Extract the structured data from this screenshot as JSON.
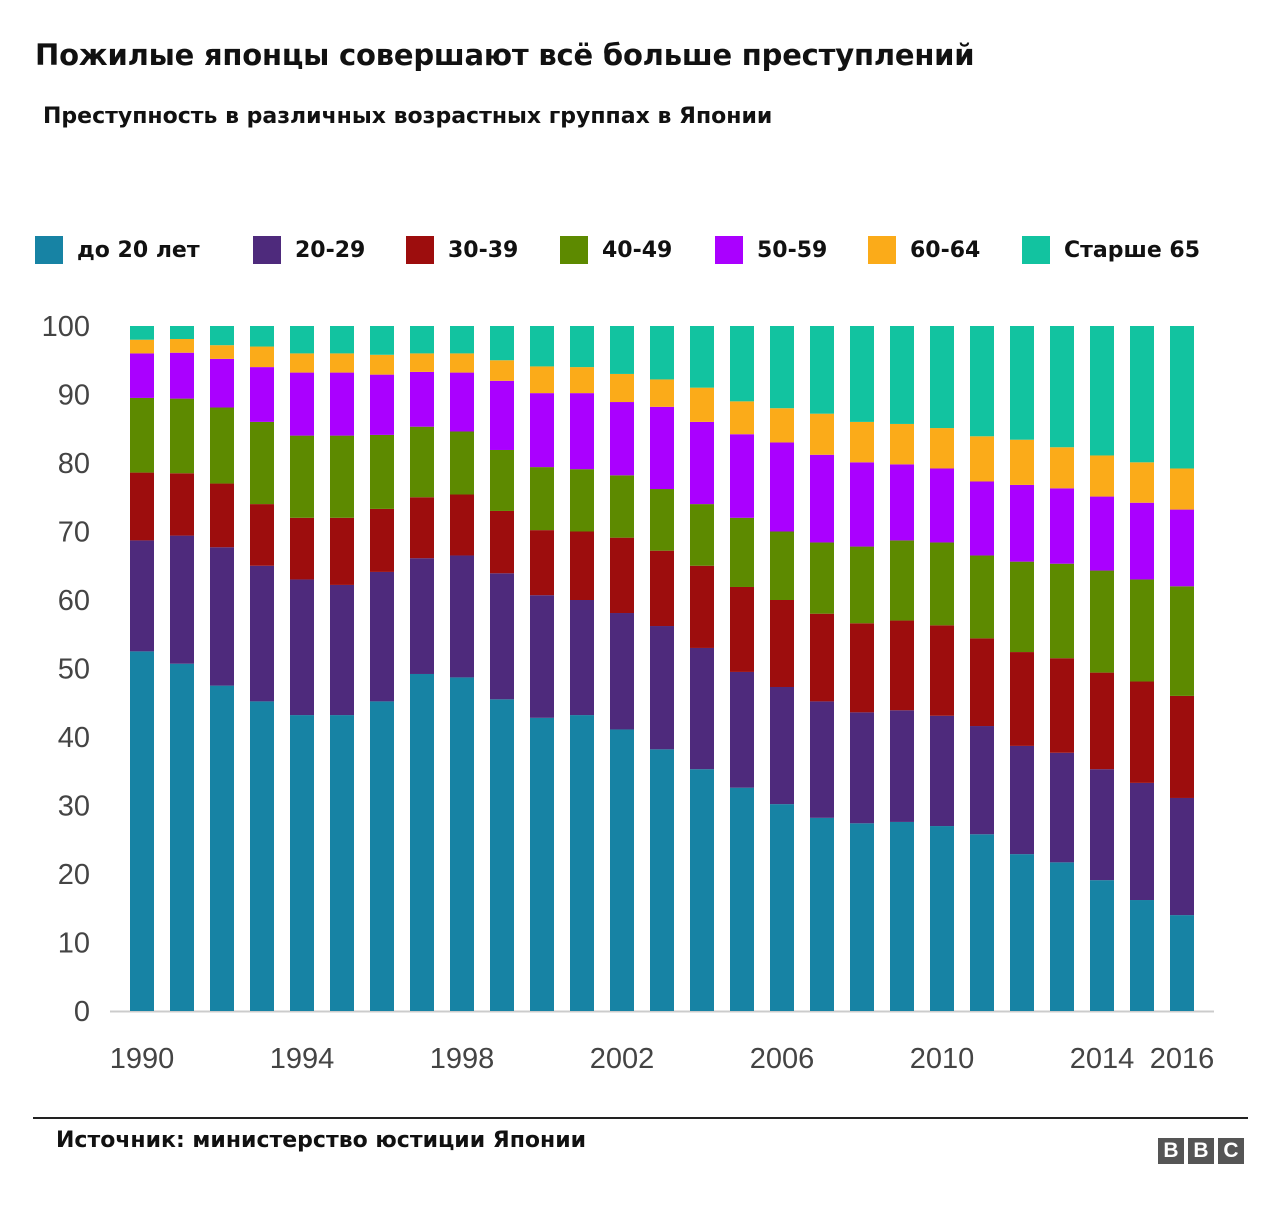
{
  "title": "Пожилые японцы совершают всё больше преступлений",
  "subtitle": "Преступность в различных возрастных группах в Японии",
  "source": "Источник: министерство юстиции Японии",
  "logo": [
    "B",
    "B",
    "C"
  ],
  "chart_data": {
    "type": "bar",
    "stacked": true,
    "title": "",
    "xlabel": "",
    "ylabel": "",
    "ylim": [
      0,
      100
    ],
    "yticks": [
      0,
      10,
      20,
      30,
      40,
      50,
      60,
      70,
      80,
      90,
      100
    ],
    "categories": [
      1990,
      1991,
      1992,
      1993,
      1994,
      1995,
      1996,
      1997,
      1998,
      1999,
      2000,
      2001,
      2002,
      2003,
      2004,
      2005,
      2006,
      2007,
      2008,
      2009,
      2010,
      2011,
      2012,
      2013,
      2014,
      2015,
      2016
    ],
    "xtick_labels": [
      {
        "year": 1990,
        "label": "1990"
      },
      {
        "year": 1994,
        "label": "1994"
      },
      {
        "year": 1998,
        "label": "1998"
      },
      {
        "year": 2002,
        "label": "2002"
      },
      {
        "year": 2006,
        "label": "2006"
      },
      {
        "year": 2010,
        "label": "2010"
      },
      {
        "year": 2014,
        "label": "2014"
      },
      {
        "year": 2016,
        "label": "2016"
      }
    ],
    "legend_position": "top",
    "grid": false,
    "series": [
      {
        "name": "до 20 лет",
        "color": "#1783a4",
        "values": [
          52.5,
          50.7,
          47.5,
          45.2,
          43.2,
          43.2,
          45.2,
          49.2,
          48.7,
          45.5,
          42.8,
          43.2,
          41.1,
          38.2,
          35.3,
          32.6,
          30.2,
          28.2,
          27.4,
          27.6,
          27.0,
          25.8,
          22.9,
          21.7,
          19.1,
          16.2,
          14.0
        ]
      },
      {
        "name": "20-29",
        "color": "#4e2a7c",
        "values": [
          16.2,
          18.7,
          20.2,
          19.8,
          19.8,
          19.0,
          18.9,
          16.9,
          17.8,
          18.4,
          17.9,
          16.8,
          17.0,
          18.0,
          17.7,
          16.9,
          17.1,
          17.0,
          16.2,
          16.3,
          16.1,
          15.8,
          15.8,
          16.0,
          16.2,
          17.1,
          17.1
        ]
      },
      {
        "name": "30-39",
        "color": "#9d0d0d",
        "values": [
          9.9,
          9.1,
          9.3,
          9.0,
          9.0,
          9.8,
          9.2,
          8.9,
          8.9,
          9.1,
          9.5,
          10.0,
          11.0,
          11.0,
          12.0,
          12.4,
          12.7,
          12.8,
          13.0,
          13.1,
          13.2,
          12.8,
          13.7,
          13.8,
          14.1,
          14.8,
          14.9
        ]
      },
      {
        "name": "40-49",
        "color": "#5d8a00",
        "values": [
          10.9,
          10.9,
          11.1,
          12.0,
          12.0,
          12.0,
          10.8,
          10.3,
          9.2,
          8.9,
          9.2,
          9.1,
          9.1,
          9.0,
          9.0,
          10.1,
          10.0,
          10.4,
          11.2,
          11.7,
          12.1,
          12.1,
          13.2,
          13.8,
          14.9,
          14.9,
          16.0
        ]
      },
      {
        "name": "50-59",
        "color": "#aa00ff",
        "values": [
          6.5,
          6.7,
          7.1,
          8.0,
          9.2,
          9.2,
          8.8,
          8.0,
          8.6,
          10.1,
          10.8,
          11.1,
          10.7,
          12.0,
          12.0,
          12.2,
          13.0,
          12.8,
          12.3,
          11.1,
          10.8,
          10.8,
          11.2,
          11.0,
          10.8,
          11.2,
          11.2
        ]
      },
      {
        "name": "60-64",
        "color": "#fbab19",
        "values": [
          2.0,
          2.0,
          2.0,
          3.0,
          2.8,
          2.8,
          2.9,
          2.7,
          2.8,
          3.0,
          3.9,
          3.8,
          4.1,
          4.0,
          5.0,
          4.8,
          5.0,
          6.0,
          5.9,
          5.9,
          5.9,
          6.6,
          6.6,
          6.0,
          6.0,
          5.9,
          6.0
        ]
      },
      {
        "name": "Старше 65",
        "color": "#12c3a0",
        "values": [
          2.0,
          1.9,
          2.8,
          3.0,
          4.0,
          4.0,
          4.2,
          4.0,
          4.0,
          5.0,
          5.9,
          6.0,
          7.0,
          7.8,
          9.0,
          11.0,
          12.0,
          12.8,
          14.0,
          14.3,
          14.9,
          16.1,
          16.6,
          17.7,
          18.9,
          19.9,
          20.8
        ]
      }
    ]
  }
}
